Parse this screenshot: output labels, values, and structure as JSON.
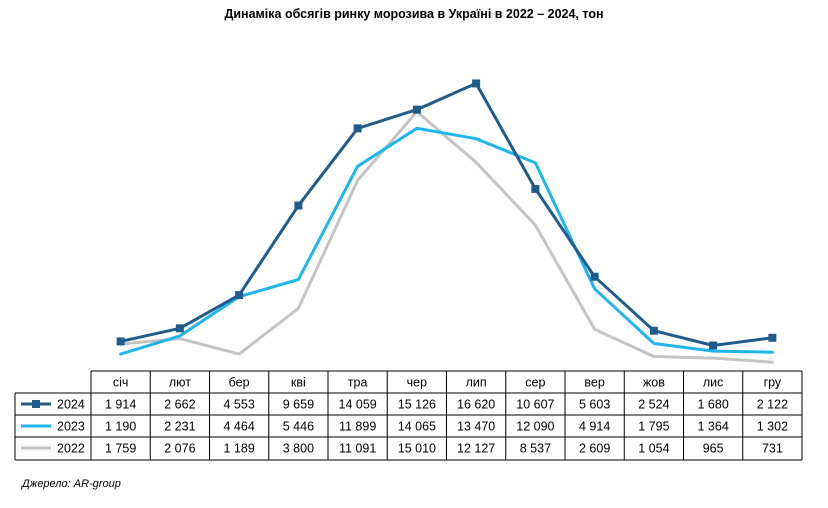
{
  "chart_data": {
    "type": "line",
    "title": "Динаміка обсягів ринку морозива в Україні в 2022 – 2024, тон",
    "categories": [
      "січ",
      "лют",
      "бер",
      "кві",
      "тра",
      "чер",
      "лип",
      "сер",
      "вер",
      "жов",
      "лис",
      "гру"
    ],
    "ylim": [
      0,
      17500
    ],
    "series": [
      {
        "name": "2024",
        "color": "#1F5C8B",
        "markers": true,
        "values": [
          1914,
          2662,
          4553,
          9659,
          14059,
          15126,
          16620,
          10607,
          5603,
          2524,
          1680,
          2122
        ],
        "labels": [
          "1 914",
          "2 662",
          "4 553",
          "9 659",
          "14 059",
          "15 126",
          "16 620",
          "10 607",
          "5 603",
          "2 524",
          "1 680",
          "2 122"
        ]
      },
      {
        "name": "2023",
        "color": "#1EB6EC",
        "markers": false,
        "values": [
          1190,
          2231,
          4464,
          5446,
          11899,
          14065,
          13470,
          12090,
          4914,
          1795,
          1364,
          1302
        ],
        "labels": [
          "1 190",
          "2 231",
          "4 464",
          "5 446",
          "11 899",
          "14 065",
          "13 470",
          "12 090",
          "4 914",
          "1 795",
          "1 364",
          "1 302"
        ]
      },
      {
        "name": "2022",
        "color": "#C4C4C4",
        "markers": false,
        "values": [
          1759,
          2076,
          1189,
          3800,
          11091,
          15010,
          12127,
          8537,
          2609,
          1054,
          965,
          731
        ],
        "labels": [
          "1 759",
          "2 076",
          "1 189",
          "3 800",
          "11 091",
          "15 010",
          "12 127",
          "8 537",
          "2 609",
          "1 054",
          "965",
          "731"
        ]
      }
    ],
    "source": "Джерело: AR-group"
  }
}
